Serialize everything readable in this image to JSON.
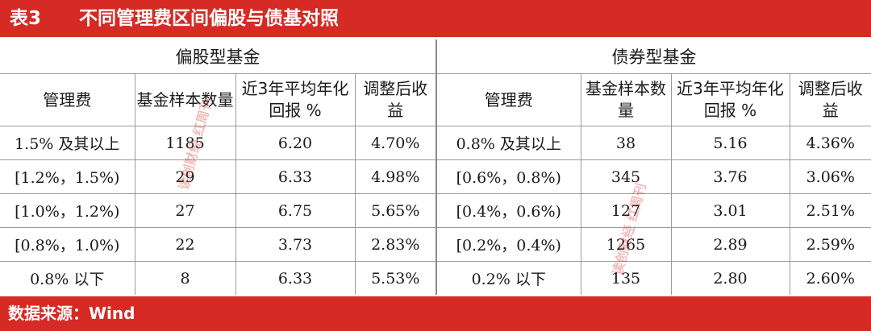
{
  "header": {
    "table_no": "表3",
    "title": "不同管理费区间偏股与债基对照"
  },
  "groups": {
    "equity": "偏股型基金",
    "bond": "债券型基金"
  },
  "columns": {
    "equity": [
      "管理费",
      "基金样本数量",
      "近3年平均年化回报 %",
      "调整后收益"
    ],
    "bond": [
      "管理费",
      "基金样本数量",
      "近3年平均年化回报 %",
      "调整后收益"
    ]
  },
  "rows": [
    {
      "e_fee": "1.5% 及其以上",
      "e_count": "1185",
      "e_return": "6.20",
      "e_adj": "4.70%",
      "b_fee": "0.8% 及其以上",
      "b_count": "38",
      "b_return": "5.16",
      "b_adj": "4.36%"
    },
    {
      "e_fee": "[1.2%，1.5%)",
      "e_count": "29",
      "e_return": "6.33",
      "e_adj": "4.98%",
      "b_fee": "[0.6%，0.8%)",
      "b_count": "345",
      "b_return": "3.76",
      "b_adj": "3.06%"
    },
    {
      "e_fee": "[1.0%，1.2%)",
      "e_count": "27",
      "e_return": "6.75",
      "e_adj": "5.65%",
      "b_fee": "[0.4%，0.6%)",
      "b_count": "127",
      "b_return": "3.01",
      "b_adj": "2.51%"
    },
    {
      "e_fee": "[0.8%，1.0%)",
      "e_count": "22",
      "e_return": "3.73",
      "e_adj": "2.83%",
      "b_fee": "[0.2%，0.4%)",
      "b_count": "1265",
      "b_return": "2.89",
      "b_adj": "2.59%"
    },
    {
      "e_fee": "0.8% 以下",
      "e_count": "8",
      "e_return": "6.33",
      "e_adj": "5.53%",
      "b_fee": "0.2% 以下",
      "b_count": "135",
      "b_return": "2.80",
      "b_adj": "2.60%"
    }
  ],
  "footer": {
    "source": "数据来源：Wind"
  },
  "watermark": {
    "text": "读创财经 红周刊"
  },
  "colors": {
    "accent": "#d62a24",
    "grid": "#9a9a9a"
  }
}
